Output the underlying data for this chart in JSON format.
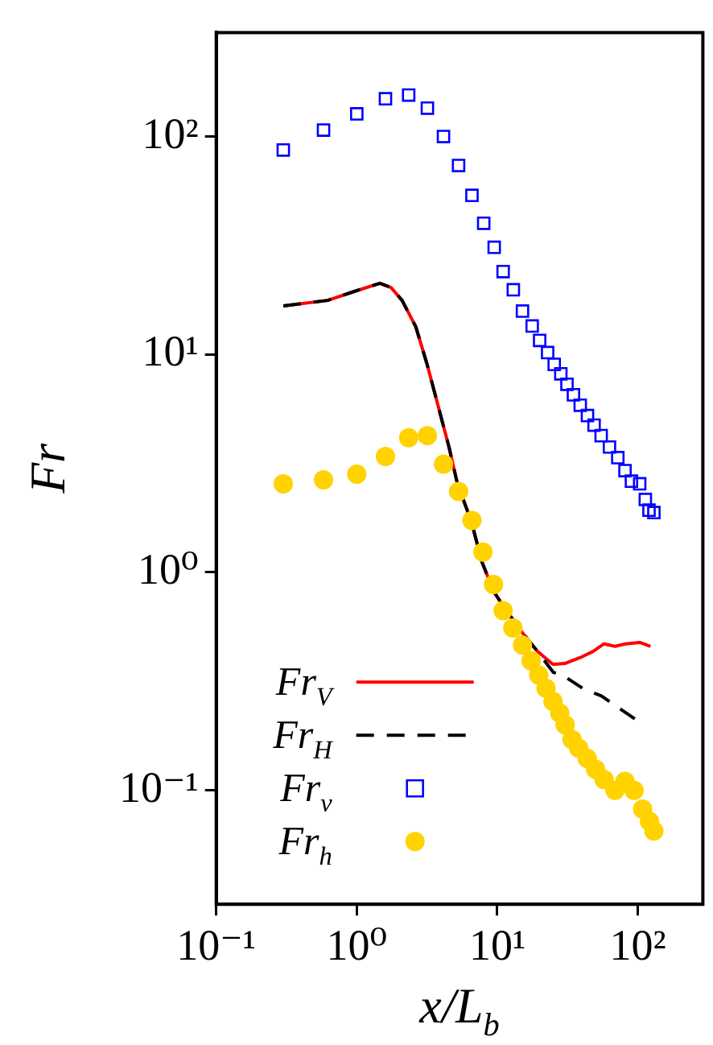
{
  "chart_data": {
    "type": "line",
    "xlabel": "x/L$_{b}$",
    "ylabel": "Fr",
    "log": "xy",
    "grid": false,
    "legend": "bottom left",
    "xlim": [
      0.1,
      290
    ],
    "ylim": [
      0.03,
      300
    ],
    "xticks": [
      {
        "value": 0.1,
        "label": "10⁻¹"
      },
      {
        "value": 1,
        "label": "10⁰"
      },
      {
        "value": 10,
        "label": "10¹"
      },
      {
        "value": 100,
        "label": "10²"
      }
    ],
    "yticks": [
      {
        "value": 0.1,
        "label": "10⁻¹"
      },
      {
        "value": 1,
        "label": "10⁰"
      },
      {
        "value": 10,
        "label": "10¹"
      },
      {
        "value": 100,
        "label": "10²"
      }
    ],
    "series": [
      {
        "name": "Fr$_{V}$",
        "marker": "none",
        "line_style": "solid",
        "color": "#ff0000",
        "x": [
          0.3,
          0.62,
          0.97,
          1.46,
          1.75,
          2.1,
          2.63,
          3.15,
          3.78,
          4.53,
          5.2,
          6.5,
          7.8,
          9.4,
          11.2,
          14.7,
          19.3,
          24.9,
          30.3,
          40,
          48,
          57.5,
          68.7,
          82,
          103,
          123
        ],
        "values": [
          16.7,
          17.7,
          19.5,
          21.2,
          20.3,
          17.7,
          13.4,
          9.1,
          5.85,
          3.76,
          2.55,
          1.73,
          1.11,
          0.82,
          0.69,
          0.54,
          0.434,
          0.378,
          0.382,
          0.41,
          0.434,
          0.47,
          0.458,
          0.47,
          0.477,
          0.458
        ]
      },
      {
        "name": "Fr$_{H}$",
        "marker": "none",
        "line_style": "dashed",
        "color": "#000000",
        "x": [
          0.3,
          0.62,
          0.97,
          1.46,
          1.75,
          2.1,
          2.63,
          3.15,
          3.78,
          4.53,
          5.2,
          6.5,
          7.8,
          9.4,
          11.2,
          14.7,
          19.3,
          25,
          29,
          41.5,
          55,
          75,
          99
        ],
        "values": [
          16.7,
          17.7,
          19.5,
          21.2,
          20.3,
          17.7,
          13.4,
          9.1,
          5.85,
          3.76,
          2.55,
          1.73,
          1.11,
          0.82,
          0.69,
          0.54,
          0.434,
          0.348,
          0.338,
          0.291,
          0.271,
          0.236,
          0.209
        ]
      },
      {
        "name": "Fr$_{v}$",
        "type": "scatter",
        "marker": "square",
        "color": "#0000ff",
        "x": [
          0.3,
          0.58,
          1.0,
          1.6,
          2.34,
          3.18,
          4.14,
          5.3,
          6.6,
          8.0,
          9.5,
          11,
          13,
          15.1,
          17.7,
          20,
          22.8,
          25.4,
          28.3,
          31.3,
          34.8,
          38.9,
          43.8,
          48.8,
          54.8,
          62.8,
          72,
          81,
          90,
          103,
          113,
          120,
          130
        ],
        "values": [
          86.7,
          107,
          127,
          149,
          155,
          135,
          100,
          73.6,
          53.7,
          40,
          31,
          24,
          19.8,
          15.8,
          13.5,
          11.6,
          10.2,
          9.0,
          8.15,
          7.3,
          6.53,
          5.85,
          5.24,
          4.74,
          4.24,
          3.76,
          3.36,
          2.93,
          2.62,
          2.55,
          2.16,
          1.93,
          1.88
        ]
      },
      {
        "name": "Fr$_{h}$",
        "type": "scatter",
        "marker": "circle",
        "color": "#ffd200",
        "x": [
          0.3,
          0.58,
          1.0,
          1.6,
          2.34,
          3.18,
          4.14,
          5.3,
          6.6,
          7.9,
          9.4,
          11,
          12.9,
          15.1,
          17.4,
          19.7,
          22.2,
          24.9,
          27.8,
          30.4,
          34,
          38,
          43.6,
          50,
          57.5,
          68.7,
          81,
          94,
          108,
          121,
          130
        ],
        "values": [
          2.55,
          2.66,
          2.82,
          3.4,
          4.15,
          4.24,
          3.14,
          2.35,
          1.73,
          1.24,
          0.88,
          0.668,
          0.556,
          0.464,
          0.393,
          0.338,
          0.294,
          0.256,
          0.226,
          0.2,
          0.171,
          0.156,
          0.14,
          0.125,
          0.112,
          0.1,
          0.11,
          0.1,
          0.082,
          0.072,
          0.065
        ]
      }
    ]
  }
}
